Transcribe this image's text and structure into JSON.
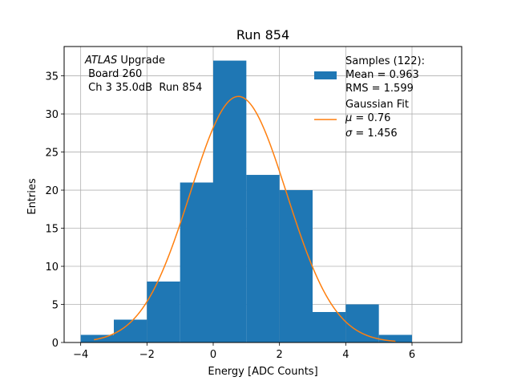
{
  "colors": {
    "bar": "#1f77b4",
    "fit": "#ff7f0e",
    "grid": "#b0b0b0",
    "axis": "#000000"
  },
  "chart_data": {
    "type": "bar",
    "title": "Run 854",
    "xlabel": "Energy [ADC Counts]",
    "ylabel": "Entries",
    "xlim": [
      -4.5,
      7.5
    ],
    "ylim": [
      0,
      38.85
    ],
    "grid": true,
    "xticks": [
      -4,
      -2,
      0,
      2,
      4,
      6
    ],
    "xtick_labels": [
      "−4",
      "−2",
      "0",
      "2",
      "4",
      "6"
    ],
    "yticks": [
      0,
      5,
      10,
      15,
      20,
      25,
      30,
      35
    ],
    "ytick_labels": [
      "0",
      "5",
      "10",
      "15",
      "20",
      "25",
      "30",
      "35"
    ],
    "bin_edges": [
      -4,
      -3,
      -2,
      -1,
      0,
      1,
      2,
      3,
      4,
      5,
      6
    ],
    "counts": [
      1,
      3,
      8,
      21,
      37,
      22,
      20,
      4,
      5,
      1
    ],
    "fit": {
      "mu": 0.76,
      "sigma": 1.456,
      "amplitude": 32.3,
      "x_range": [
        -3.6,
        5.5
      ]
    },
    "annotation": {
      "line1_italic": "ATLAS",
      "line1_rest": " Upgrade",
      "line2": " Board 260",
      "line3": " Ch 3 35.0dB  Run 854"
    },
    "legend": {
      "position": "top-right",
      "samples": {
        "line1": "Samples (122):",
        "line2": "Mean = 0.963",
        "line3": "RMS = 1.599"
      },
      "fit": {
        "line1": "Gaussian Fit",
        "mu_symbol": "μ",
        "mu_value": " = 0.76",
        "sigma_symbol": "σ",
        "sigma_value": " = 1.456"
      }
    }
  }
}
